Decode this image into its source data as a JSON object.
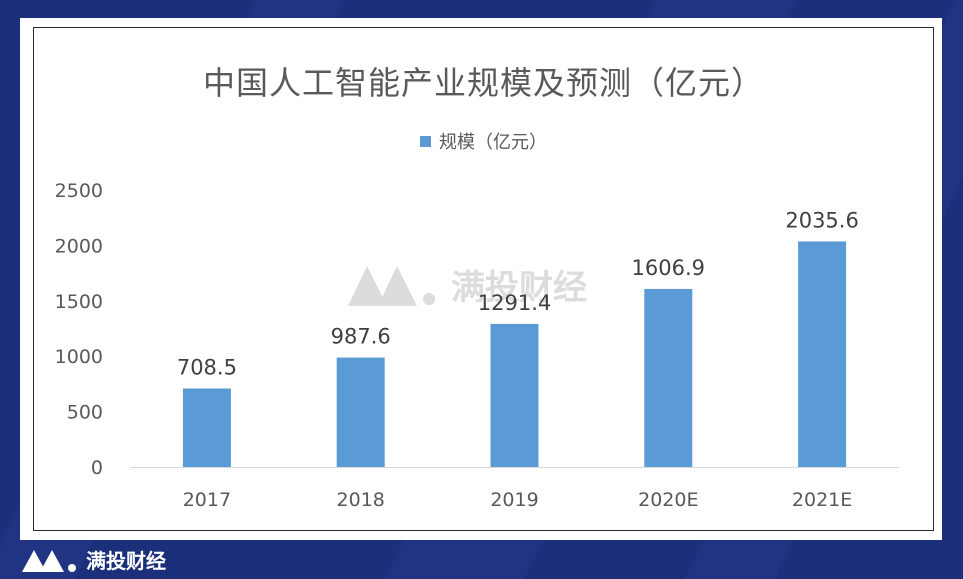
{
  "brand": {
    "name": "满投财经",
    "watermark_text": "满投财经"
  },
  "colors": {
    "bar": "#5b9bd5",
    "background": "#1c2f7a",
    "axis_text": "#595959",
    "watermark": "#d8d8d8"
  },
  "chart_data": {
    "type": "bar",
    "title": "中国人工智能产业规模及预测（亿元）",
    "categories": [
      "2017",
      "2018",
      "2019",
      "2020E",
      "2021E"
    ],
    "series": [
      {
        "name": "规模（亿元）",
        "values": [
          708.5,
          987.6,
          1291.4,
          1606.9,
          2035.6
        ]
      }
    ],
    "data_labels": [
      "708.5",
      "987.6",
      "1291.4",
      "1606.9",
      "2035.6"
    ],
    "ylim": [
      0,
      2500
    ],
    "yticks": [
      "0",
      "500",
      "1000",
      "1500",
      "2000",
      "2500"
    ],
    "grid": false,
    "legend_position": "top"
  }
}
